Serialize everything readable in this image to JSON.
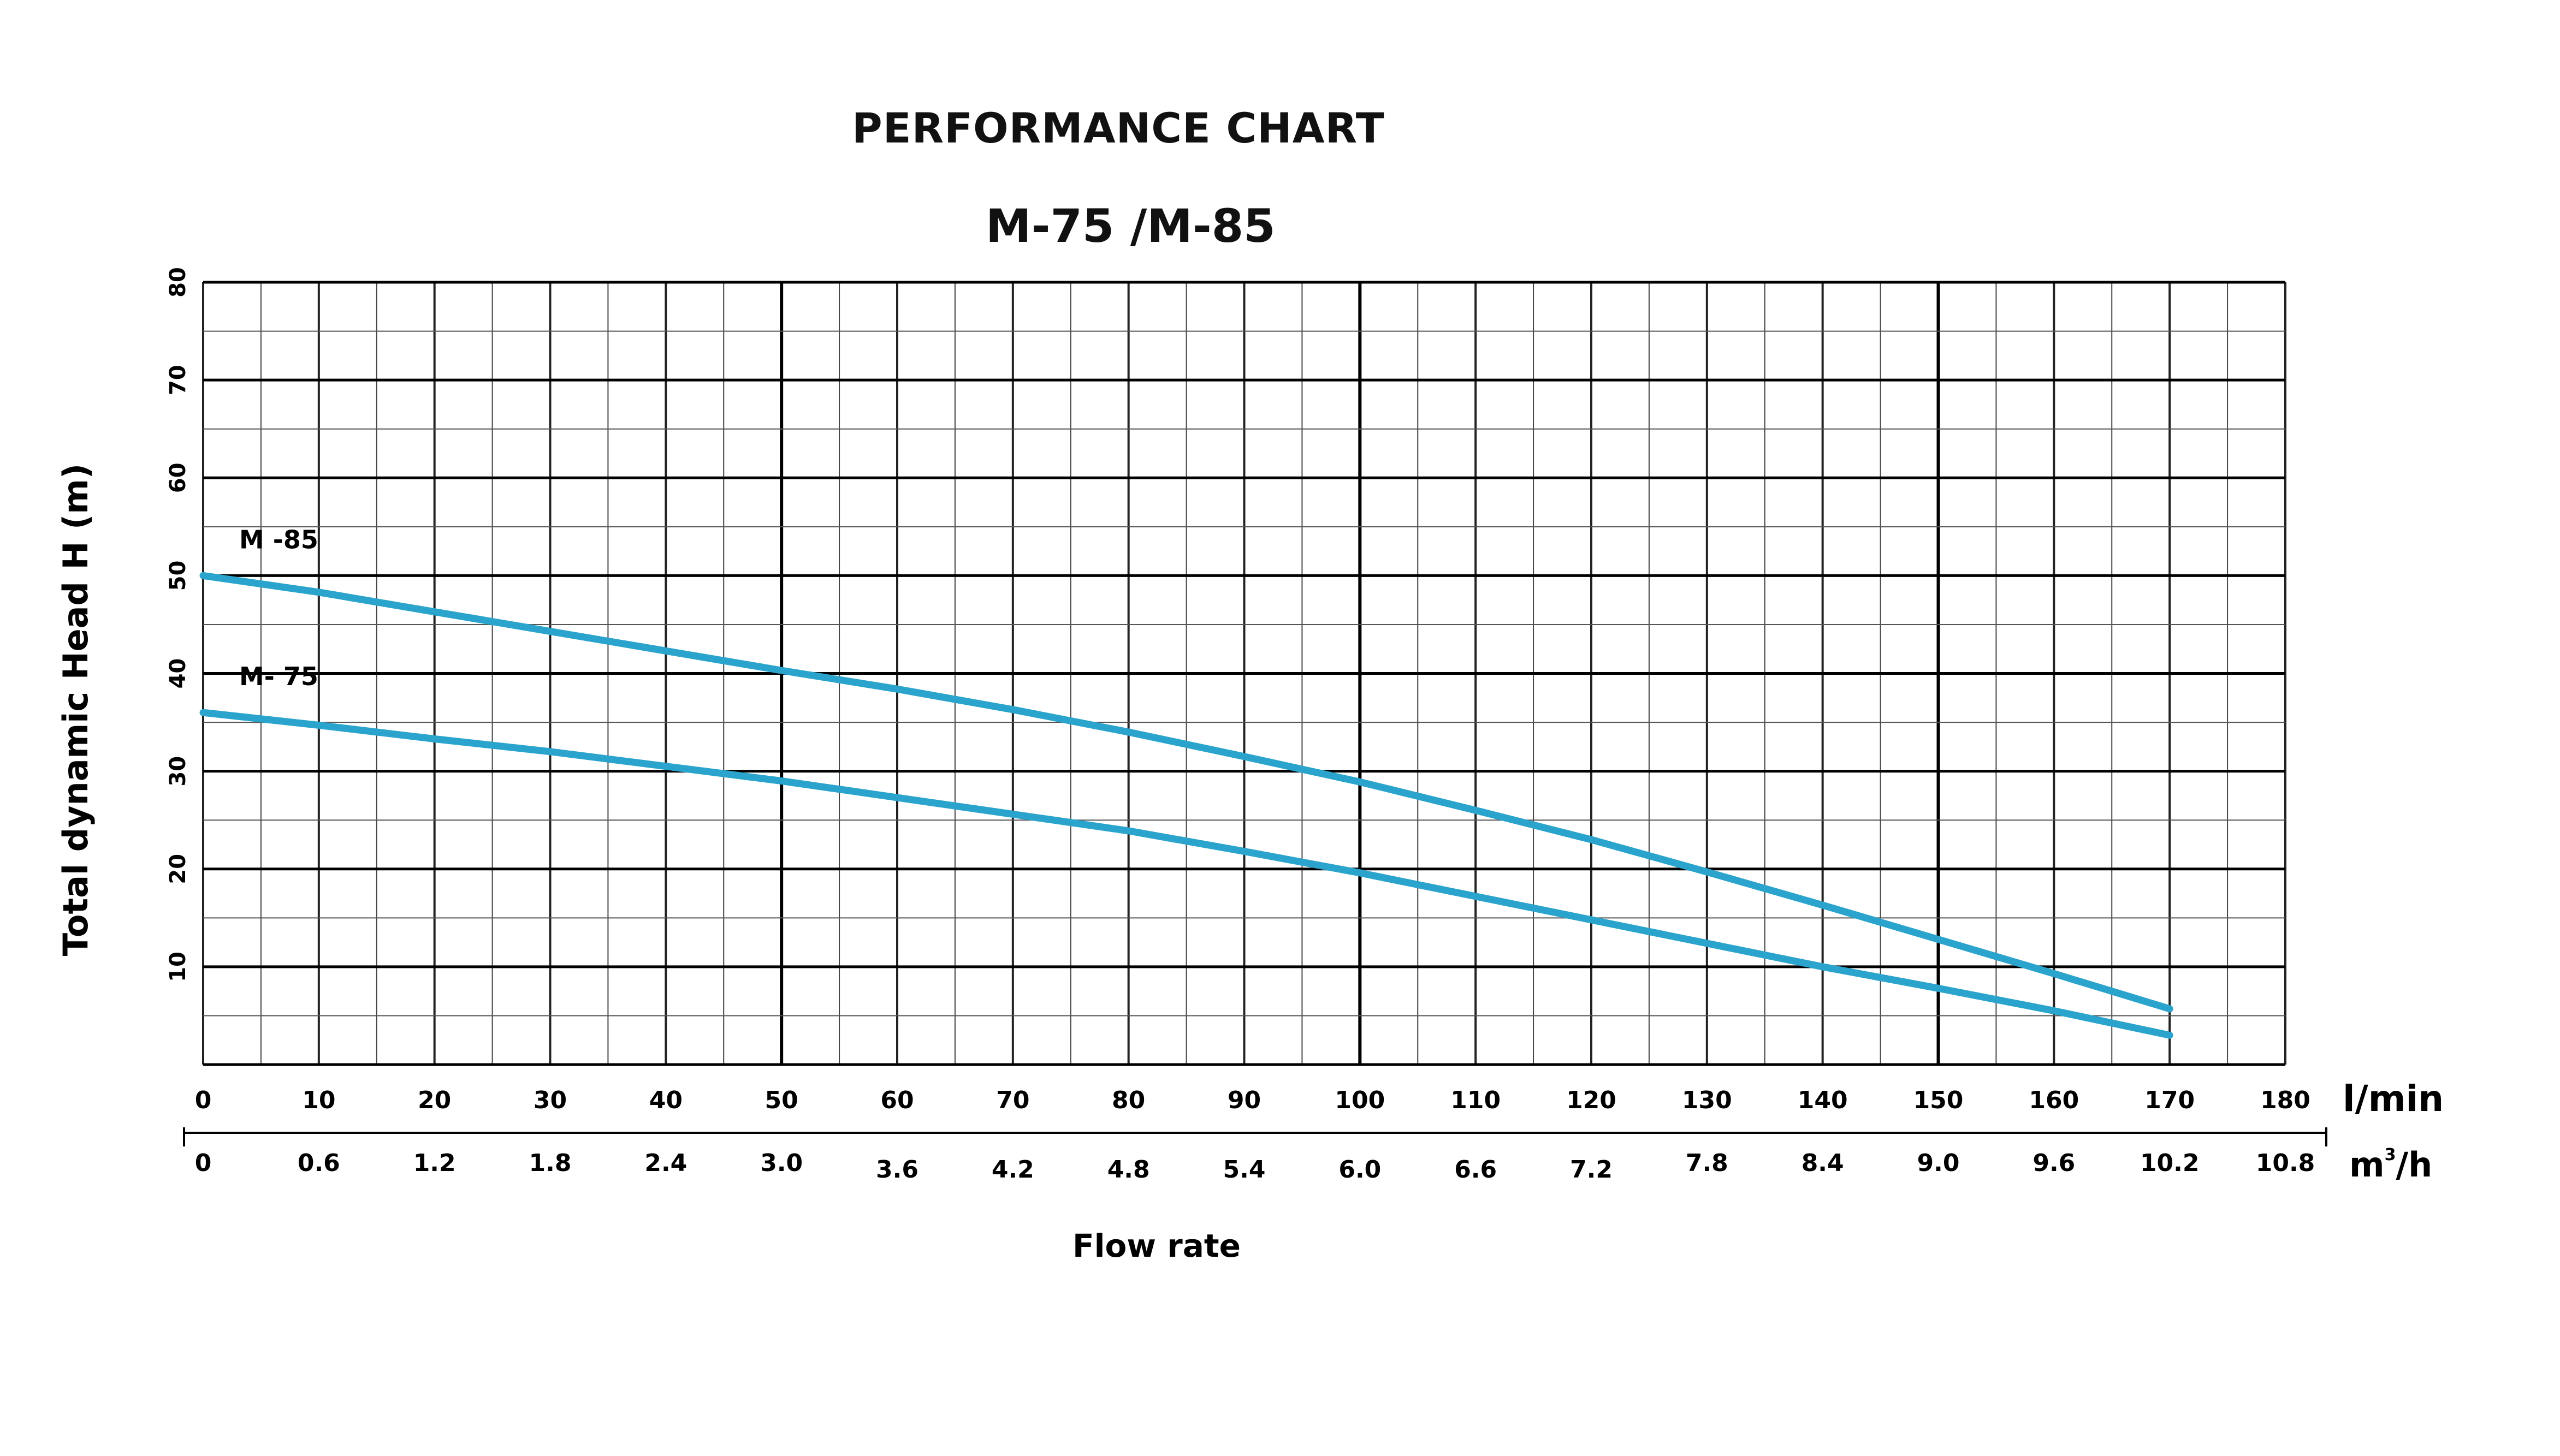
{
  "chart_data": {
    "type": "line",
    "title": "PERFORMANCE CHART",
    "subtitle": "M-75  /M-85",
    "ylabel": "Total dynamic Head H (m)",
    "xlabel": "Flow rate",
    "xlim": [
      0,
      180
    ],
    "ylim": [
      0,
      80
    ],
    "grid": true,
    "y_ticks": [
      "10",
      "20",
      "30",
      "40",
      "50",
      "60",
      "70",
      "80"
    ],
    "x_axis_lmin": {
      "unit": "l/min",
      "ticks": [
        "0",
        "10",
        "20",
        "30",
        "40",
        "50",
        "60",
        "70",
        "80",
        "90",
        "100",
        "110",
        "120",
        "130",
        "140",
        "150",
        "160",
        "170",
        "180"
      ]
    },
    "x_axis_m3h": {
      "unit_base": "m",
      "unit_sup": "3",
      "unit_tail": "/h",
      "ticks": [
        "0",
        "0.6",
        "1.2",
        "1.8",
        "2.4",
        "3.0",
        "3.6",
        "4.2",
        "4.8",
        "5.4",
        "6.0",
        "6.6",
        "7.2",
        "7.8",
        "8.4",
        "9.0",
        "9.6",
        "10.2",
        "10.8"
      ]
    },
    "series": [
      {
        "name": "M -85",
        "color": "#2aa4cc",
        "x": [
          0,
          10,
          20,
          30,
          40,
          50,
          60,
          70,
          80,
          90,
          100,
          110,
          120,
          130,
          140,
          150,
          160,
          170
        ],
        "y": [
          50,
          48.3,
          46.3,
          44.3,
          42.3,
          40.3,
          38.4,
          36.3,
          34.0,
          31.5,
          28.9,
          26.0,
          23.0,
          19.7,
          16.3,
          12.8,
          9.3,
          5.7
        ]
      },
      {
        "name": "M- 75",
        "color": "#2aa4cc",
        "x": [
          0,
          10,
          20,
          30,
          40,
          50,
          60,
          70,
          80,
          90,
          100,
          110,
          120,
          130,
          140,
          150,
          160,
          170
        ],
        "y": [
          36,
          34.7,
          33.3,
          32.0,
          30.5,
          29.0,
          27.3,
          25.6,
          23.9,
          21.8,
          19.6,
          17.2,
          14.8,
          12.4,
          10.0,
          7.8,
          5.5,
          3.0
        ]
      }
    ]
  }
}
